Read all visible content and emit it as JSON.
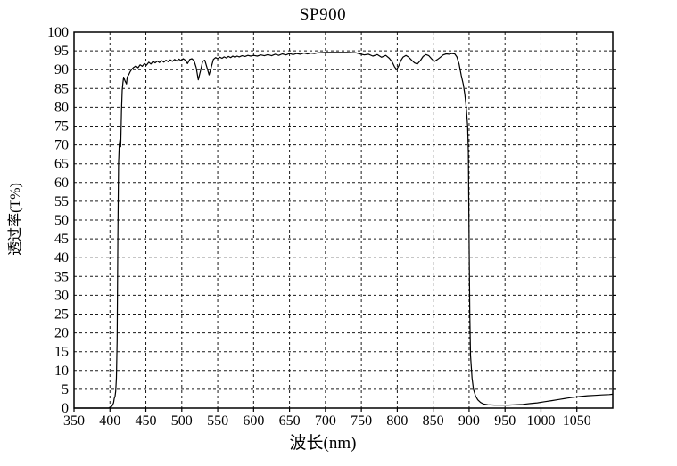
{
  "figure": {
    "title": "SP900",
    "x_axis_label": "波长(nm)",
    "y_axis_label": "透过率(T%)"
  },
  "chart_data": {
    "type": "line",
    "title": "SP900",
    "xlabel": "波长(nm)",
    "ylabel": "透过率(T%)",
    "xlim": [
      350,
      1100
    ],
    "ylim": [
      0,
      100
    ],
    "x_ticks": [
      350,
      400,
      450,
      500,
      550,
      600,
      650,
      700,
      750,
      800,
      850,
      900,
      950,
      1000,
      1050
    ],
    "y_ticks": [
      0,
      5,
      10,
      15,
      20,
      25,
      30,
      35,
      40,
      45,
      50,
      55,
      60,
      65,
      70,
      75,
      80,
      85,
      90,
      95,
      100
    ],
    "grid": "dashed",
    "legend": "none",
    "line_color": "#000000",
    "grid_color": "#1a1a1a",
    "series": [
      {
        "name": "SP900",
        "points": [
          [
            350,
            0
          ],
          [
            370,
            0
          ],
          [
            390,
            0
          ],
          [
            398,
            0
          ],
          [
            401,
            0.2
          ],
          [
            403,
            0.6
          ],
          [
            405,
            1.4
          ],
          [
            406,
            2.6
          ],
          [
            407,
            3.0
          ],
          [
            408,
            4.5
          ],
          [
            409,
            8
          ],
          [
            410,
            18
          ],
          [
            411,
            45
          ],
          [
            412,
            65
          ],
          [
            413,
            70
          ],
          [
            414,
            71.5
          ],
          [
            415,
            69.5
          ],
          [
            416,
            79
          ],
          [
            417,
            84.5
          ],
          [
            418,
            86.5
          ],
          [
            419,
            88
          ],
          [
            421,
            87
          ],
          [
            423,
            86.2
          ],
          [
            424,
            88
          ],
          [
            426,
            88.6
          ],
          [
            428,
            89.4
          ],
          [
            430,
            90
          ],
          [
            433,
            90.6
          ],
          [
            436,
            91
          ],
          [
            439,
            90.5
          ],
          [
            442,
            91.3
          ],
          [
            445,
            90.9
          ],
          [
            448,
            91.6
          ],
          [
            451,
            91.2
          ],
          [
            454,
            92
          ],
          [
            457,
            91.5
          ],
          [
            460,
            92.2
          ],
          [
            463,
            91.8
          ],
          [
            466,
            92.3
          ],
          [
            469,
            91.9
          ],
          [
            472,
            92.4
          ],
          [
            475,
            92
          ],
          [
            478,
            92.5
          ],
          [
            481,
            92.1
          ],
          [
            484,
            92.6
          ],
          [
            487,
            92.2
          ],
          [
            490,
            92.7
          ],
          [
            493,
            92.3
          ],
          [
            496,
            92.8
          ],
          [
            499,
            92.4
          ],
          [
            502,
            92.9
          ],
          [
            505,
            92.5
          ],
          [
            508,
            91.6
          ],
          [
            511,
            92.7
          ],
          [
            514,
            92.9
          ],
          [
            517,
            92.4
          ],
          [
            520,
            90.6
          ],
          [
            523,
            87.3
          ],
          [
            526,
            89.6
          ],
          [
            529,
            92.2
          ],
          [
            532,
            92.5
          ],
          [
            535,
            90.6
          ],
          [
            538,
            88.6
          ],
          [
            541,
            90.6
          ],
          [
            544,
            92.7
          ],
          [
            547,
            93.2
          ],
          [
            550,
            92.9
          ],
          [
            553,
            93.3
          ],
          [
            556,
            93.0
          ],
          [
            559,
            93.4
          ],
          [
            562,
            93.1
          ],
          [
            565,
            93.5
          ],
          [
            568,
            93.2
          ],
          [
            571,
            93.6
          ],
          [
            574,
            93.3
          ],
          [
            577,
            93.6
          ],
          [
            580,
            93.4
          ],
          [
            584,
            93.7
          ],
          [
            588,
            93.5
          ],
          [
            592,
            93.8
          ],
          [
            596,
            93.6
          ],
          [
            600,
            93.8
          ],
          [
            605,
            93.6
          ],
          [
            610,
            93.9
          ],
          [
            615,
            93.7
          ],
          [
            620,
            94.0
          ],
          [
            625,
            93.7
          ],
          [
            630,
            94.1
          ],
          [
            635,
            93.8
          ],
          [
            640,
            94.2
          ],
          [
            645,
            93.9
          ],
          [
            650,
            94.3
          ],
          [
            655,
            94.0
          ],
          [
            660,
            94.3
          ],
          [
            665,
            94.1
          ],
          [
            670,
            94.4
          ],
          [
            675,
            94.2
          ],
          [
            680,
            94.4
          ],
          [
            685,
            94.3
          ],
          [
            690,
            94.5
          ],
          [
            700,
            94.6
          ],
          [
            715,
            94.6
          ],
          [
            730,
            94.6
          ],
          [
            742,
            94.5
          ],
          [
            748,
            94.2
          ],
          [
            754,
            93.9
          ],
          [
            760,
            94.1
          ],
          [
            766,
            93.6
          ],
          [
            772,
            94.0
          ],
          [
            778,
            93.3
          ],
          [
            784,
            93.8
          ],
          [
            789,
            93.0
          ],
          [
            793,
            92.0
          ],
          [
            796,
            90.8
          ],
          [
            799,
            90.0
          ],
          [
            802,
            91.0
          ],
          [
            805,
            92.4
          ],
          [
            808,
            93.3
          ],
          [
            812,
            93.8
          ],
          [
            816,
            93.3
          ],
          [
            820,
            92.5
          ],
          [
            824,
            91.8
          ],
          [
            828,
            91.5
          ],
          [
            832,
            92.4
          ],
          [
            836,
            93.5
          ],
          [
            840,
            94.0
          ],
          [
            844,
            93.7
          ],
          [
            848,
            92.8
          ],
          [
            852,
            92.2
          ],
          [
            856,
            92.7
          ],
          [
            860,
            93.3
          ],
          [
            864,
            93.9
          ],
          [
            868,
            94.2
          ],
          [
            872,
            94.1
          ],
          [
            876,
            94.3
          ],
          [
            880,
            94.2
          ],
          [
            883,
            93.4
          ],
          [
            886,
            91.5
          ],
          [
            889,
            88.5
          ],
          [
            892,
            86
          ],
          [
            894,
            83.5
          ],
          [
            896,
            80
          ],
          [
            898,
            75
          ],
          [
            899,
            68
          ],
          [
            900,
            45
          ],
          [
            901,
            25
          ],
          [
            902,
            14
          ],
          [
            904,
            8
          ],
          [
            906,
            5
          ],
          [
            909,
            3.2
          ],
          [
            912,
            2.2
          ],
          [
            916,
            1.5
          ],
          [
            920,
            1.1
          ],
          [
            926,
            0.9
          ],
          [
            935,
            0.8
          ],
          [
            945,
            0.8
          ],
          [
            955,
            0.8
          ],
          [
            965,
            0.9
          ],
          [
            975,
            1.0
          ],
          [
            985,
            1.2
          ],
          [
            995,
            1.4
          ],
          [
            1005,
            1.7
          ],
          [
            1015,
            2.0
          ],
          [
            1025,
            2.3
          ],
          [
            1035,
            2.6
          ],
          [
            1045,
            2.9
          ],
          [
            1055,
            3.1
          ],
          [
            1065,
            3.3
          ],
          [
            1075,
            3.4
          ],
          [
            1085,
            3.5
          ],
          [
            1095,
            3.6
          ],
          [
            1100,
            3.7
          ]
        ]
      }
    ]
  }
}
